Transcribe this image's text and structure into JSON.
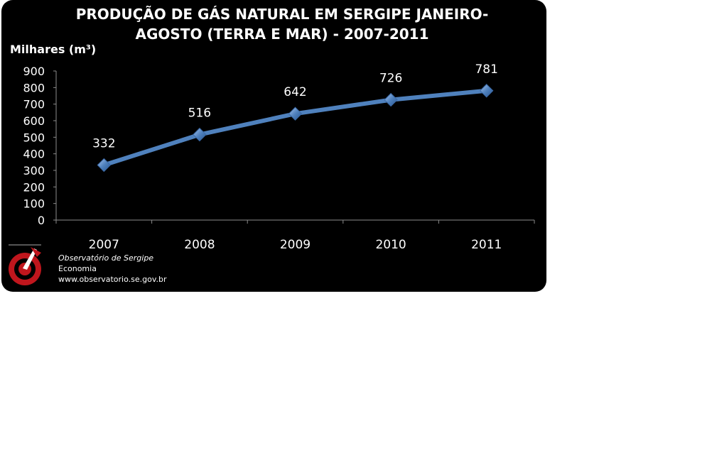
{
  "chart_data": {
    "type": "line",
    "title": "PRODUÇÃO DE GÁS NATURAL EM SERGIPE JANEIRO-AGOSTO (TERRA E MAR) - 2007-2011",
    "title_lines": [
      "PRODUÇÃO DE GÁS NATURAL EM SERGIPE JANEIRO-",
      "AGOSTO (TERRA E MAR) - 2007-2011"
    ],
    "ylabel": "Milhares (m³)",
    "xlabel": "",
    "categories": [
      "2007",
      "2008",
      "2009",
      "2010",
      "2011"
    ],
    "values": [
      332,
      516,
      642,
      726,
      781
    ],
    "data_labels": [
      "332",
      "516",
      "642",
      "726",
      "781"
    ],
    "ylim": [
      0,
      900
    ],
    "yticks": [
      0,
      100,
      200,
      300,
      400,
      500,
      600,
      700,
      800,
      900
    ],
    "grid": false,
    "legend": "none",
    "line_color": "#4f81bd",
    "background": "#000000",
    "text_color": "#ffffff"
  },
  "footer": {
    "org": "Observatório de Sergipe",
    "dept": "Economia",
    "site": "www.observatorio.se.gov.br"
  },
  "logo": {
    "icon": "observatorio-logo-icon",
    "color": "#c0161d"
  }
}
